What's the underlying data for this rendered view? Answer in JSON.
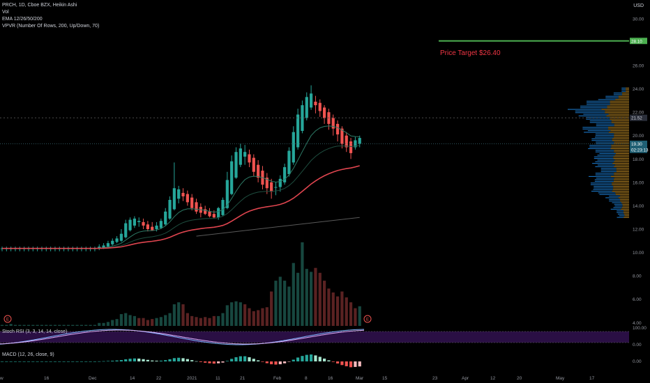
{
  "header": {
    "title": "PRCH, 1D, Cboe BZX, Heikin Ashi",
    "indicators": [
      "Vol",
      "EMA 12/26/50/200",
      "VPVR (Number Of Rows, 200, Up/Down, 70)"
    ],
    "currency": "USD"
  },
  "panes": {
    "stoch_rsi_label": "Stoch RSI (3, 3, 14, 14, close)",
    "macd_label": "MACD (12, 26, close, 9)"
  },
  "annotation": {
    "text": "Price Target $26.40",
    "color": "#f23645"
  },
  "colors": {
    "up": "#26a69a",
    "down": "#ef5350",
    "vol_up": "#17473f",
    "vol_down": "#5a2222",
    "target_line": "#4caf50",
    "stoch_band": "#2a0f44",
    "ema_red": "#e0454f",
    "ema_green": "#1e4d3f",
    "ema_grey": "#5a5a5a"
  },
  "chart_data": {
    "type": "candlestick",
    "x_tick_labels": [
      "w",
      "16",
      "Dec",
      "14",
      "22",
      "2021",
      "11",
      "21",
      "Feb",
      "8",
      "16",
      "Mar",
      "15",
      "23",
      "Apr",
      "12",
      "20",
      "May",
      "17"
    ],
    "y_tick_labels": [
      "30.00",
      "28.00",
      "26.00",
      "24.00",
      "22.00",
      "20.00",
      "18.00",
      "16.00",
      "14.00",
      "12.00",
      "10.00",
      "8.00",
      "6.00",
      "4.00"
    ],
    "y_range": [
      3.6,
      31.6
    ],
    "candles": [
      {
        "o": 10.3,
        "h": 10.5,
        "l": 10.1,
        "c": 10.35
      },
      {
        "o": 10.3,
        "h": 10.5,
        "l": 10.1,
        "c": 10.35
      },
      {
        "o": 10.3,
        "h": 10.5,
        "l": 10.1,
        "c": 10.35
      },
      {
        "o": 10.3,
        "h": 10.5,
        "l": 10.1,
        "c": 10.35
      },
      {
        "o": 10.3,
        "h": 10.5,
        "l": 10.1,
        "c": 10.35
      },
      {
        "o": 10.3,
        "h": 10.5,
        "l": 10.1,
        "c": 10.35
      },
      {
        "o": 10.3,
        "h": 10.5,
        "l": 10.1,
        "c": 10.35
      },
      {
        "o": 10.3,
        "h": 10.5,
        "l": 10.1,
        "c": 10.35
      },
      {
        "o": 10.3,
        "h": 10.5,
        "l": 10.1,
        "c": 10.35
      },
      {
        "o": 10.3,
        "h": 10.5,
        "l": 10.1,
        "c": 10.35
      },
      {
        "o": 10.3,
        "h": 10.5,
        "l": 10.1,
        "c": 10.35
      },
      {
        "o": 10.3,
        "h": 10.5,
        "l": 10.1,
        "c": 10.35
      },
      {
        "o": 10.3,
        "h": 10.5,
        "l": 10.1,
        "c": 10.35
      },
      {
        "o": 10.3,
        "h": 10.5,
        "l": 10.1,
        "c": 10.35
      },
      {
        "o": 10.3,
        "h": 10.5,
        "l": 10.1,
        "c": 10.35
      },
      {
        "o": 10.3,
        "h": 10.5,
        "l": 10.1,
        "c": 10.35
      },
      {
        "o": 10.3,
        "h": 10.5,
        "l": 10.1,
        "c": 10.35
      },
      {
        "o": 10.3,
        "h": 10.5,
        "l": 10.1,
        "c": 10.35
      },
      {
        "o": 10.3,
        "h": 10.5,
        "l": 10.1,
        "c": 10.35
      },
      {
        "o": 10.3,
        "h": 10.5,
        "l": 10.1,
        "c": 10.35
      },
      {
        "o": 10.3,
        "h": 10.5,
        "l": 10.1,
        "c": 10.35
      },
      {
        "o": 10.3,
        "h": 10.5,
        "l": 10.1,
        "c": 10.35
      },
      {
        "o": 10.35,
        "h": 10.7,
        "l": 10.2,
        "c": 10.5
      },
      {
        "o": 10.4,
        "h": 10.8,
        "l": 10.3,
        "c": 10.6
      },
      {
        "o": 10.5,
        "h": 11.0,
        "l": 10.4,
        "c": 10.8
      },
      {
        "o": 10.7,
        "h": 11.2,
        "l": 10.6,
        "c": 11.0
      },
      {
        "o": 10.9,
        "h": 11.4,
        "l": 10.8,
        "c": 11.2
      },
      {
        "o": 11.0,
        "h": 12.0,
        "l": 10.9,
        "c": 11.6
      },
      {
        "o": 11.3,
        "h": 12.8,
        "l": 11.2,
        "c": 12.5
      },
      {
        "o": 11.9,
        "h": 13.0,
        "l": 11.8,
        "c": 12.8
      },
      {
        "o": 12.3,
        "h": 13.1,
        "l": 12.1,
        "c": 12.9
      },
      {
        "o": 12.6,
        "h": 13.0,
        "l": 12.2,
        "c": 12.7
      },
      {
        "o": 12.6,
        "h": 12.9,
        "l": 12.0,
        "c": 12.3
      },
      {
        "o": 12.4,
        "h": 12.7,
        "l": 11.8,
        "c": 12.0
      },
      {
        "o": 12.2,
        "h": 12.6,
        "l": 11.9,
        "c": 11.9
      },
      {
        "o": 12.0,
        "h": 12.6,
        "l": 11.8,
        "c": 12.3
      },
      {
        "o": 12.1,
        "h": 12.9,
        "l": 12.0,
        "c": 12.7
      },
      {
        "o": 12.4,
        "h": 13.8,
        "l": 12.3,
        "c": 13.5
      },
      {
        "o": 12.9,
        "h": 14.8,
        "l": 12.8,
        "c": 14.5
      },
      {
        "o": 13.7,
        "h": 17.7,
        "l": 13.6,
        "c": 15.5
      },
      {
        "o": 14.6,
        "h": 15.7,
        "l": 14.2,
        "c": 15.4
      },
      {
        "o": 15.1,
        "h": 15.5,
        "l": 14.4,
        "c": 14.8
      },
      {
        "o": 15.0,
        "h": 15.3,
        "l": 14.0,
        "c": 14.3
      },
      {
        "o": 14.7,
        "h": 15.0,
        "l": 13.6,
        "c": 13.8
      },
      {
        "o": 14.3,
        "h": 14.6,
        "l": 13.3,
        "c": 13.5
      },
      {
        "o": 13.9,
        "h": 14.2,
        "l": 13.0,
        "c": 13.4
      },
      {
        "o": 13.7,
        "h": 14.0,
        "l": 13.2,
        "c": 13.3
      },
      {
        "o": 13.5,
        "h": 13.8,
        "l": 13.0,
        "c": 13.1
      },
      {
        "o": 13.3,
        "h": 13.6,
        "l": 12.9,
        "c": 13.0
      },
      {
        "o": 13.0,
        "h": 13.9,
        "l": 12.8,
        "c": 13.8
      },
      {
        "o": 13.2,
        "h": 14.7,
        "l": 13.1,
        "c": 14.5
      },
      {
        "o": 13.8,
        "h": 16.9,
        "l": 13.7,
        "c": 16.2
      },
      {
        "o": 15.0,
        "h": 18.3,
        "l": 14.9,
        "c": 17.8
      },
      {
        "o": 16.4,
        "h": 19.0,
        "l": 16.3,
        "c": 18.6
      },
      {
        "o": 17.5,
        "h": 19.3,
        "l": 17.3,
        "c": 18.9
      },
      {
        "o": 18.2,
        "h": 19.2,
        "l": 17.5,
        "c": 18.6
      },
      {
        "o": 18.4,
        "h": 18.8,
        "l": 17.3,
        "c": 17.7
      },
      {
        "o": 18.1,
        "h": 18.4,
        "l": 16.5,
        "c": 16.9
      },
      {
        "o": 17.5,
        "h": 17.9,
        "l": 16.0,
        "c": 16.4
      },
      {
        "o": 17.0,
        "h": 17.4,
        "l": 15.4,
        "c": 15.8
      },
      {
        "o": 16.4,
        "h": 16.8,
        "l": 15.0,
        "c": 15.5
      },
      {
        "o": 16.0,
        "h": 16.3,
        "l": 14.6,
        "c": 15.2
      },
      {
        "o": 15.6,
        "h": 16.0,
        "l": 14.9,
        "c": 15.6
      },
      {
        "o": 15.6,
        "h": 16.6,
        "l": 15.2,
        "c": 16.3
      },
      {
        "o": 16.0,
        "h": 17.6,
        "l": 15.8,
        "c": 17.3
      },
      {
        "o": 16.7,
        "h": 19.0,
        "l": 16.5,
        "c": 18.7
      },
      {
        "o": 17.7,
        "h": 20.8,
        "l": 17.5,
        "c": 20.3
      },
      {
        "o": 19.0,
        "h": 22.3,
        "l": 18.8,
        "c": 21.8
      },
      {
        "o": 20.4,
        "h": 23.0,
        "l": 20.2,
        "c": 22.6
      },
      {
        "o": 21.5,
        "h": 23.7,
        "l": 21.3,
        "c": 23.3
      },
      {
        "o": 22.4,
        "h": 24.3,
        "l": 22.2,
        "c": 23.6
      },
      {
        "o": 22.9,
        "h": 23.4,
        "l": 21.9,
        "c": 22.6
      },
      {
        "o": 22.8,
        "h": 23.1,
        "l": 21.6,
        "c": 22.1
      },
      {
        "o": 22.4,
        "h": 22.6,
        "l": 21.0,
        "c": 21.5
      },
      {
        "o": 22.0,
        "h": 22.3,
        "l": 20.5,
        "c": 21.0
      },
      {
        "o": 21.5,
        "h": 21.8,
        "l": 20.0,
        "c": 20.6
      },
      {
        "o": 21.0,
        "h": 21.3,
        "l": 19.5,
        "c": 20.1
      },
      {
        "o": 20.6,
        "h": 20.8,
        "l": 18.9,
        "c": 19.3
      },
      {
        "o": 20.0,
        "h": 20.3,
        "l": 18.6,
        "c": 19.0
      },
      {
        "o": 19.5,
        "h": 19.8,
        "l": 18.0,
        "c": 18.5
      },
      {
        "o": 19.0,
        "h": 19.9,
        "l": 18.8,
        "c": 19.6
      },
      {
        "o": 19.3,
        "h": 20.0,
        "l": 19.0,
        "c": 19.8
      }
    ],
    "volume_scale_max": 8.5,
    "volumes": [
      0.1,
      0.1,
      0.2,
      0.1,
      0.1,
      0.1,
      0.1,
      0.1,
      0.1,
      0.1,
      0.1,
      0.1,
      0.1,
      0.1,
      0.1,
      0.1,
      0.1,
      0.1,
      0.1,
      0.1,
      0.1,
      0.1,
      0.3,
      0.3,
      0.4,
      0.6,
      0.7,
      1.2,
      1.3,
      1.1,
      1.0,
      0.8,
      0.8,
      0.6,
      0.7,
      0.8,
      0.9,
      1.1,
      1.3,
      2.2,
      2.4,
      2.2,
      1.3,
      1.0,
      0.9,
      0.8,
      0.9,
      0.8,
      1.0,
      1.0,
      1.3,
      2.1,
      2.4,
      2.5,
      2.4,
      2.2,
      1.8,
      1.5,
      1.6,
      1.8,
      1.9,
      3.5,
      4.6,
      5.0,
      4.6,
      4.0,
      6.4,
      5.4,
      8.5,
      5.8,
      5.5,
      5.9,
      5.4,
      4.6,
      3.8,
      3.4,
      3.0,
      3.5,
      2.9,
      2.4,
      1.8,
      2.0
    ],
    "volume_directions": [
      1,
      1,
      1,
      1,
      1,
      1,
      1,
      1,
      1,
      1,
      1,
      1,
      1,
      1,
      1,
      1,
      1,
      1,
      1,
      1,
      1,
      1,
      1,
      1,
      1,
      1,
      1,
      1,
      1,
      1,
      1,
      0,
      0,
      0,
      0,
      1,
      1,
      1,
      1,
      1,
      1,
      0,
      0,
      0,
      0,
      0,
      0,
      0,
      0,
      1,
      1,
      1,
      1,
      1,
      1,
      0,
      0,
      0,
      0,
      0,
      0,
      0,
      1,
      1,
      1,
      1,
      1,
      1,
      1,
      1,
      1,
      0,
      0,
      0,
      0,
      0,
      0,
      0,
      0,
      0,
      0,
      1
    ],
    "ema_200_endpoints": [
      11.4,
      13.0
    ],
    "price_levels": [
      {
        "label": "28.10",
        "value": 28.1
      },
      {
        "label": "21.52",
        "value": 21.52
      },
      {
        "label": "19.30",
        "value": 19.3
      },
      {
        "label": "02:23:13",
        "value": 18.78
      }
    ],
    "stoch_axis_labels": [
      "100.00",
      "0.00"
    ],
    "macd_axis_label": "0.00"
  }
}
